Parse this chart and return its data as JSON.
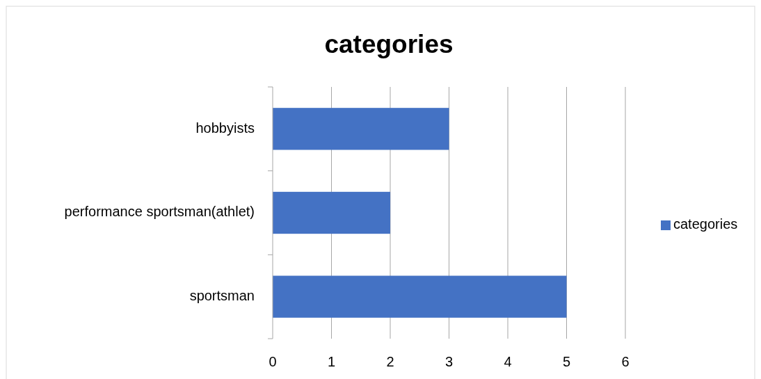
{
  "chart_data": {
    "type": "bar",
    "title": "categories",
    "orientation": "horizontal",
    "categories": [
      "hobbyists",
      "performance sportsman(athlet)",
      "sportsman"
    ],
    "series": [
      {
        "name": "categories",
        "color": "#4472c4",
        "values": [
          3,
          2,
          5
        ]
      }
    ],
    "xlim": [
      0,
      6
    ],
    "xticks": [
      0,
      1,
      2,
      3,
      4,
      5,
      6
    ],
    "grid": "x",
    "legend": "right"
  }
}
